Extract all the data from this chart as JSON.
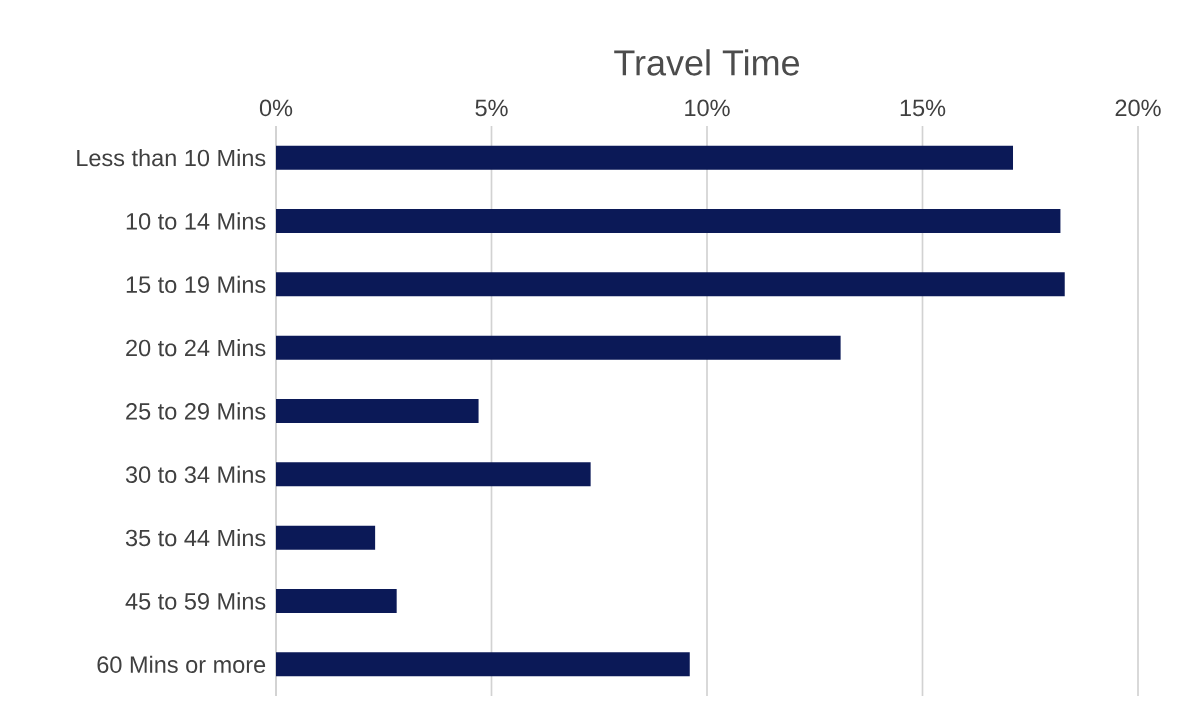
{
  "chart_data": {
    "type": "bar",
    "orientation": "horizontal",
    "title": "Travel Time",
    "categories": [
      "Less than 10 Mins",
      "10 to 14 Mins",
      "15 to 19 Mins",
      "20 to 24 Mins",
      "25 to 29 Mins",
      "30 to 34 Mins",
      "35 to 44 Mins",
      "45 to 59 Mins",
      "60 Mins or more"
    ],
    "values": [
      17.1,
      18.2,
      18.3,
      13.1,
      4.7,
      7.3,
      2.3,
      2.8,
      9.6
    ],
    "color": "#0b1957",
    "xlim": [
      0,
      20
    ],
    "xticks": [
      {
        "value": 0,
        "label": "0%"
      },
      {
        "value": 5,
        "label": "5%"
      },
      {
        "value": 10,
        "label": "10%"
      },
      {
        "value": 15,
        "label": "15%"
      },
      {
        "value": 20,
        "label": "20%"
      }
    ],
    "grid": "x"
  }
}
